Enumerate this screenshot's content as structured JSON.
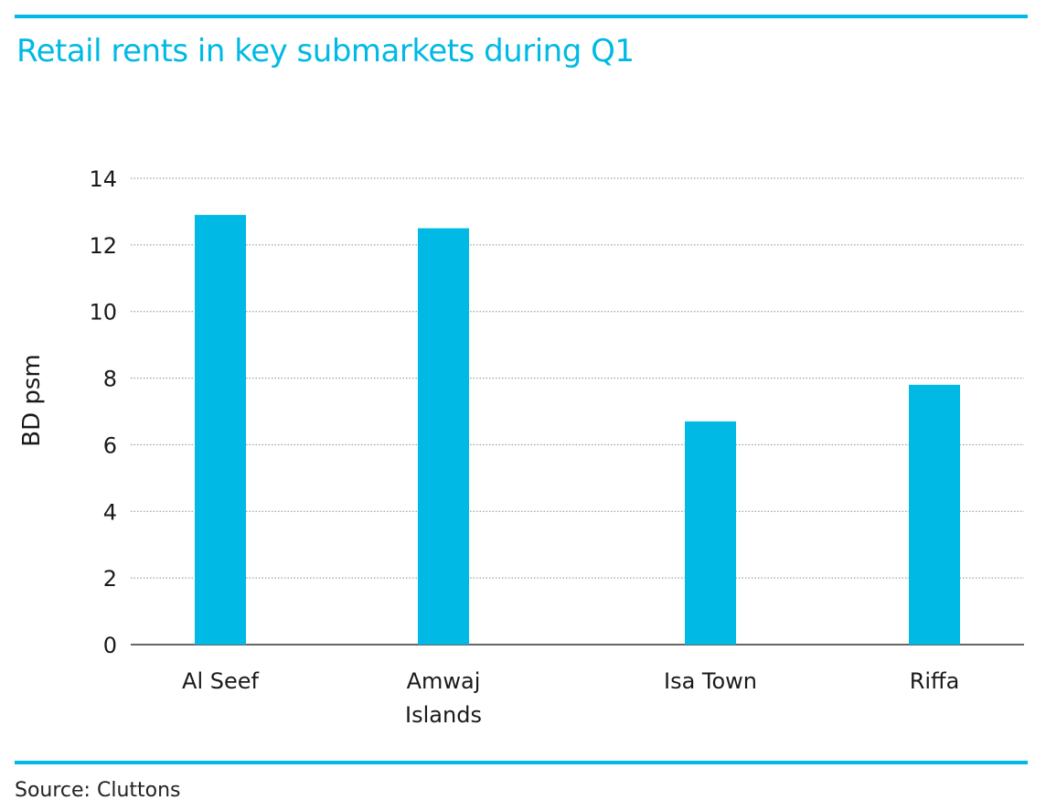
{
  "header": {
    "title": "Retail rents in key submarkets during Q1"
  },
  "footer": {
    "source": "Source: Cluttons"
  },
  "colors": {
    "accent": "#00b9e4",
    "bar": "#00b9e4",
    "grid": "#8a8a8a",
    "axis": "#333333"
  },
  "chart_data": {
    "type": "bar",
    "title": "Retail rents in key submarkets during Q1",
    "xlabel": "",
    "ylabel": "BD psm",
    "ylim": [
      0,
      14
    ],
    "yticks": [
      0,
      2,
      4,
      6,
      8,
      10,
      12,
      14
    ],
    "grid": true,
    "categories": [
      [
        "Al Seef"
      ],
      [
        "Amwaj",
        "Islands"
      ],
      [
        "Isa Town"
      ],
      [
        "Riffa"
      ]
    ],
    "values": [
      12.9,
      12.5,
      6.7,
      7.8
    ]
  }
}
